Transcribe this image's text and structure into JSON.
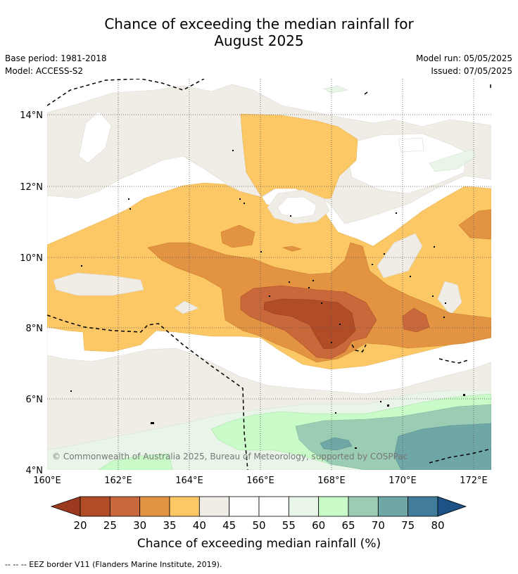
{
  "header": {
    "title_line1": "Chance of exceeding the median rainfall for",
    "title_line2": "August 2025",
    "base_period": "Base period: 1981-2018",
    "model": "Model: ACCESS-S2",
    "model_run": "Model run: 05/05/2025",
    "issued": "Issued: 07/05/2025"
  },
  "map": {
    "lat_ticks": [
      "14°N",
      "12°N",
      "10°N",
      "8°N",
      "6°N",
      "4°N"
    ],
    "lon_ticks": [
      "160°E",
      "162°E",
      "164°E",
      "166°E",
      "168°E",
      "170°E",
      "172°E"
    ],
    "copyright": "© Commonwealth of Australia 2025, Bureau of Meteorology, supported by COSPPac"
  },
  "colorbar": {
    "title": "Chance of exceeding median rainfall (%)",
    "labels": [
      "20",
      "25",
      "30",
      "35",
      "40",
      "45",
      "50",
      "55",
      "60",
      "65",
      "70",
      "75",
      "80"
    ],
    "colors": {
      "lt20": "#9c3a20",
      "c20": "#b04d27",
      "c25": "#c9683a",
      "c30": "#e39442",
      "c35": "#fcc865",
      "c40": "#f0ece6",
      "c45": "#ffffff",
      "c50": "#ffffff",
      "c55": "#eaf5e9",
      "c60": "#c9fbc9",
      "c65": "#9bcdb4",
      "c70": "#6fa6a6",
      "c75": "#427c9b",
      "gt80": "#1d5287"
    }
  },
  "footnote": "--  --  -- EEZ border V11 (Flanders Marine Institute, 2019)."
}
